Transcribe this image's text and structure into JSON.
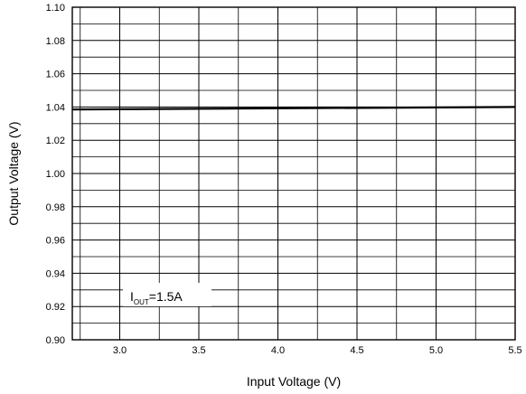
{
  "chart_data": {
    "type": "line",
    "xlabel": "Input Voltage (V)",
    "ylabel": "Output Voltage (V)",
    "xlim": [
      2.7,
      5.5
    ],
    "ylim": [
      0.9,
      1.1
    ],
    "x_major_ticks": [
      "3.0",
      "3.5",
      "4.0",
      "4.5",
      "5.0",
      "5.5"
    ],
    "x_major_values": [
      3.0,
      3.5,
      4.0,
      4.5,
      5.0,
      5.5
    ],
    "x_grid_step": 0.25,
    "y_ticks": [
      "0.90",
      "0.92",
      "0.94",
      "0.96",
      "0.98",
      "1.00",
      "1.02",
      "1.04",
      "1.06",
      "1.08",
      "1.10"
    ],
    "y_major_values": [
      0.9,
      0.92,
      0.94,
      0.96,
      0.98,
      1.0,
      1.02,
      1.04,
      1.06,
      1.08,
      1.1
    ],
    "y_grid_step": 0.01,
    "grid": true,
    "series": [
      {
        "x": [
          2.7,
          5.5
        ],
        "y": [
          1.0385,
          1.04
        ]
      }
    ],
    "annotation": {
      "main": "I",
      "sub": "OUT",
      "rest": "=1.5A"
    }
  }
}
